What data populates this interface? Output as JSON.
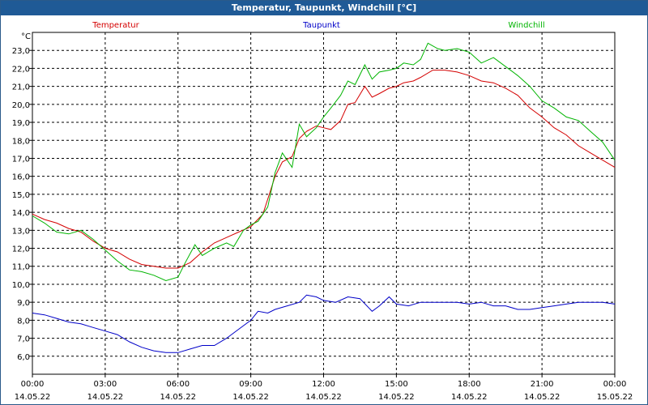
{
  "window": {
    "title": "Temperatur, Taupunkt, Windchill [°C]"
  },
  "chart_data": {
    "type": "line",
    "title": "Temperatur, Taupunkt, Windchill [°C]",
    "ylabel": "°C",
    "ylim": [
      5.0,
      24.0
    ],
    "y_ticks": [
      "6,0",
      "7,0",
      "8,0",
      "9,0",
      "10,0",
      "11,0",
      "12,0",
      "13,0",
      "14,0",
      "15,0",
      "16,0",
      "17,0",
      "18,0",
      "19,0",
      "20,0",
      "21,0",
      "22,0",
      "23,0"
    ],
    "x_ticks": [
      {
        "time": "00:00",
        "date": "14.05.22"
      },
      {
        "time": "03:00",
        "date": "14.05.22"
      },
      {
        "time": "06:00",
        "date": "14.05.22"
      },
      {
        "time": "09:00",
        "date": "14.05.22"
      },
      {
        "time": "12:00",
        "date": "14.05.22"
      },
      {
        "time": "15:00",
        "date": "14.05.22"
      },
      {
        "time": "18:00",
        "date": "14.05.22"
      },
      {
        "time": "21:00",
        "date": "14.05.22"
      },
      {
        "time": "00:00",
        "date": "15.05.22"
      }
    ],
    "xlim_hours": [
      0,
      24
    ],
    "grid": true,
    "legend_placement": "top",
    "series": [
      {
        "name": "Temperatur",
        "color": "#d40000",
        "points": [
          [
            0,
            13.9
          ],
          [
            0.5,
            13.6
          ],
          [
            1,
            13.4
          ],
          [
            1.5,
            13.1
          ],
          [
            2,
            12.9
          ],
          [
            2.5,
            12.4
          ],
          [
            3,
            12.0
          ],
          [
            3.5,
            11.8
          ],
          [
            4,
            11.4
          ],
          [
            4.5,
            11.1
          ],
          [
            5,
            11.0
          ],
          [
            5.5,
            10.9
          ],
          [
            6,
            10.9
          ],
          [
            6.5,
            11.2
          ],
          [
            7,
            11.8
          ],
          [
            7.5,
            12.3
          ],
          [
            8,
            12.6
          ],
          [
            8.5,
            12.9
          ],
          [
            9,
            13.2
          ],
          [
            9.5,
            13.9
          ],
          [
            10,
            16.0
          ],
          [
            10.3,
            16.8
          ],
          [
            10.7,
            17.1
          ],
          [
            11,
            18.1
          ],
          [
            11.3,
            18.5
          ],
          [
            11.7,
            18.8
          ],
          [
            12,
            18.7
          ],
          [
            12.3,
            18.6
          ],
          [
            12.7,
            19.1
          ],
          [
            13,
            20.0
          ],
          [
            13.3,
            20.1
          ],
          [
            13.7,
            21.0
          ],
          [
            14,
            20.4
          ],
          [
            14.3,
            20.6
          ],
          [
            14.7,
            20.9
          ],
          [
            15,
            21.0
          ],
          [
            15.3,
            21.2
          ],
          [
            15.7,
            21.3
          ],
          [
            16,
            21.5
          ],
          [
            16.5,
            21.9
          ],
          [
            17,
            21.9
          ],
          [
            17.5,
            21.8
          ],
          [
            18,
            21.6
          ],
          [
            18.5,
            21.3
          ],
          [
            19,
            21.2
          ],
          [
            19.5,
            20.9
          ],
          [
            20,
            20.5
          ],
          [
            20.5,
            19.8
          ],
          [
            21,
            19.3
          ],
          [
            21.5,
            18.7
          ],
          [
            22,
            18.3
          ],
          [
            22.5,
            17.7
          ],
          [
            23,
            17.3
          ],
          [
            23.5,
            16.9
          ],
          [
            24,
            16.5
          ]
        ]
      },
      {
        "name": "Taupunkt",
        "color": "#0000c8",
        "points": [
          [
            0,
            8.4
          ],
          [
            0.5,
            8.3
          ],
          [
            1,
            8.1
          ],
          [
            1.5,
            7.9
          ],
          [
            2,
            7.8
          ],
          [
            2.5,
            7.6
          ],
          [
            3,
            7.4
          ],
          [
            3.5,
            7.2
          ],
          [
            4,
            6.8
          ],
          [
            4.5,
            6.5
          ],
          [
            5,
            6.3
          ],
          [
            5.5,
            6.2
          ],
          [
            6,
            6.2
          ],
          [
            6.5,
            6.4
          ],
          [
            7,
            6.6
          ],
          [
            7.5,
            6.6
          ],
          [
            8,
            7.0
          ],
          [
            8.5,
            7.5
          ],
          [
            9,
            8.0
          ],
          [
            9.3,
            8.5
          ],
          [
            9.7,
            8.4
          ],
          [
            10,
            8.6
          ],
          [
            10.5,
            8.8
          ],
          [
            11,
            9.0
          ],
          [
            11.3,
            9.4
          ],
          [
            11.7,
            9.3
          ],
          [
            12,
            9.1
          ],
          [
            12.5,
            9.0
          ],
          [
            13,
            9.3
          ],
          [
            13.5,
            9.2
          ],
          [
            14,
            8.5
          ],
          [
            14.3,
            8.8
          ],
          [
            14.7,
            9.3
          ],
          [
            15,
            8.9
          ],
          [
            15.5,
            8.8
          ],
          [
            16,
            9.0
          ],
          [
            16.5,
            9.0
          ],
          [
            17,
            9.0
          ],
          [
            17.5,
            9.0
          ],
          [
            18,
            8.9
          ],
          [
            18.5,
            9.0
          ],
          [
            19,
            8.8
          ],
          [
            19.5,
            8.8
          ],
          [
            20,
            8.6
          ],
          [
            20.5,
            8.6
          ],
          [
            21,
            8.7
          ],
          [
            21.5,
            8.8
          ],
          [
            22,
            8.9
          ],
          [
            22.5,
            9.0
          ],
          [
            23,
            9.0
          ],
          [
            23.5,
            9.0
          ],
          [
            24,
            8.9
          ]
        ]
      },
      {
        "name": "Windchill",
        "color": "#00b400",
        "points": [
          [
            0,
            13.8
          ],
          [
            0.5,
            13.4
          ],
          [
            1,
            12.9
          ],
          [
            1.5,
            12.8
          ],
          [
            2,
            13.0
          ],
          [
            2.5,
            12.5
          ],
          [
            3,
            11.9
          ],
          [
            3.5,
            11.3
          ],
          [
            4,
            10.8
          ],
          [
            4.5,
            10.7
          ],
          [
            5,
            10.5
          ],
          [
            5.5,
            10.2
          ],
          [
            6,
            10.4
          ],
          [
            6.3,
            11.2
          ],
          [
            6.7,
            12.2
          ],
          [
            7,
            11.6
          ],
          [
            7.5,
            12.0
          ],
          [
            8,
            12.3
          ],
          [
            8.3,
            12.1
          ],
          [
            8.7,
            13.0
          ],
          [
            9,
            13.3
          ],
          [
            9.3,
            13.5
          ],
          [
            9.7,
            14.3
          ],
          [
            10,
            16.2
          ],
          [
            10.3,
            17.3
          ],
          [
            10.7,
            16.5
          ],
          [
            11,
            18.9
          ],
          [
            11.3,
            18.2
          ],
          [
            11.7,
            18.7
          ],
          [
            12,
            19.3
          ],
          [
            12.3,
            19.8
          ],
          [
            12.7,
            20.5
          ],
          [
            13,
            21.3
          ],
          [
            13.3,
            21.1
          ],
          [
            13.7,
            22.2
          ],
          [
            14,
            21.4
          ],
          [
            14.3,
            21.8
          ],
          [
            14.7,
            21.9
          ],
          [
            15,
            22.0
          ],
          [
            15.3,
            22.3
          ],
          [
            15.7,
            22.2
          ],
          [
            16,
            22.5
          ],
          [
            16.3,
            23.4
          ],
          [
            16.7,
            23.1
          ],
          [
            17,
            23.0
          ],
          [
            17.5,
            23.1
          ],
          [
            18,
            22.9
          ],
          [
            18.5,
            22.3
          ],
          [
            19,
            22.6
          ],
          [
            19.5,
            22.1
          ],
          [
            20,
            21.6
          ],
          [
            20.5,
            21.0
          ],
          [
            21,
            20.2
          ],
          [
            21.5,
            19.8
          ],
          [
            22,
            19.3
          ],
          [
            22.5,
            19.1
          ],
          [
            23,
            18.5
          ],
          [
            23.5,
            17.9
          ],
          [
            24,
            16.9
          ]
        ]
      }
    ]
  }
}
